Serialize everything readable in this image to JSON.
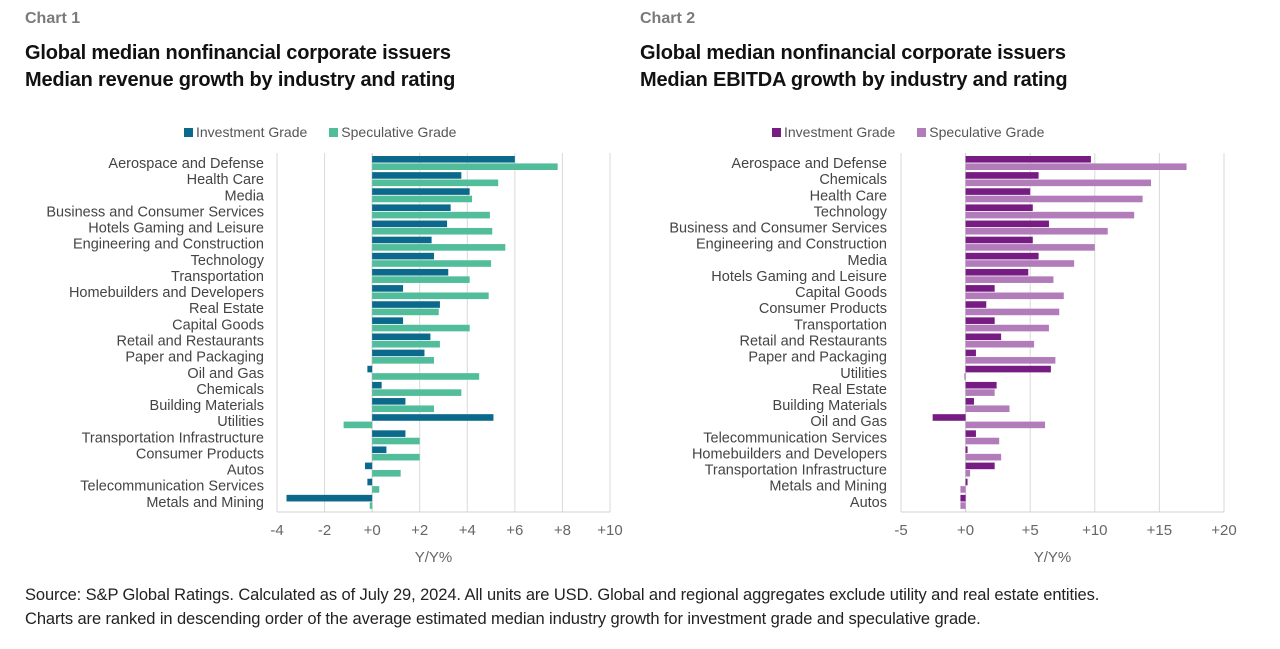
{
  "footer": {
    "line1": "Source: S&P Global Ratings. Calculated as of July 29, 2024. All units are USD. Global and regional aggregates exclude utility and real estate entities.",
    "line2": "Charts are ranked in descending order of the average estimated median industry growth for investment grade and speculative grade."
  },
  "chart_data": [
    {
      "type": "bar",
      "orientation": "horizontal",
      "chart_number": "Chart 1",
      "title_line1": "Global median nonfinancial corporate issuers",
      "title_line2": "Median revenue growth by industry and rating",
      "xlabel": "Y/Y%",
      "ylabel": "",
      "xlim": [
        -4,
        10
      ],
      "xticks": [
        -4,
        -2,
        0,
        2,
        4,
        6,
        8,
        10
      ],
      "xtick_labels": [
        "-4",
        "-2",
        "+0",
        "+2",
        "+4",
        "+6",
        "+8",
        "+10"
      ],
      "grid": true,
      "legend_position": "top",
      "categories": [
        "Aerospace and Defense",
        "Health Care",
        "Media",
        "Business and Consumer Services",
        "Hotels Gaming and Leisure",
        "Engineering and Construction",
        "Technology",
        "Transportation",
        "Homebuilders and Developers",
        "Real Estate",
        "Capital Goods",
        "Retail and Restaurants",
        "Paper and Packaging",
        "Oil and Gas",
        "Chemicals",
        "Building Materials",
        "Utilities",
        "Transportation Infrastructure",
        "Consumer Products",
        "Autos",
        "Telecommunication Services",
        "Metals and Mining"
      ],
      "series": [
        {
          "name": "Investment Grade",
          "color": "#0b6a8b",
          "values": [
            6.0,
            3.75,
            4.1,
            3.3,
            3.15,
            2.5,
            2.6,
            3.2,
            1.3,
            2.85,
            1.3,
            2.45,
            2.2,
            -0.2,
            0.4,
            1.4,
            5.1,
            1.4,
            0.6,
            -0.3,
            -0.2,
            -3.6
          ]
        },
        {
          "name": "Speculative Grade",
          "color": "#52bd9a",
          "values": [
            7.8,
            5.3,
            4.2,
            4.95,
            5.05,
            5.6,
            5.0,
            4.1,
            4.9,
            2.8,
            4.1,
            2.85,
            2.6,
            4.5,
            3.75,
            2.6,
            -1.2,
            2.0,
            2.0,
            1.2,
            0.3,
            -0.1
          ]
        }
      ]
    },
    {
      "type": "bar",
      "orientation": "horizontal",
      "chart_number": "Chart 2",
      "title_line1": "Global median nonfinancial corporate issuers",
      "title_line2": "Median EBITDA growth by industry and rating",
      "xlabel": "Y/Y%",
      "ylabel": "",
      "xlim": [
        -5,
        20
      ],
      "xticks": [
        -5,
        0,
        5,
        10,
        15,
        20
      ],
      "xtick_labels": [
        "-5",
        "+0",
        "+5",
        "+10",
        "+15",
        "+20"
      ],
      "grid": true,
      "legend_position": "top",
      "categories": [
        "Aerospace and Defense",
        "Chemicals",
        "Health Care",
        "Technology",
        "Business and Consumer Services",
        "Engineering and Construction",
        "Media",
        "Hotels Gaming and Leisure",
        "Capital Goods",
        "Consumer Products",
        "Transportation",
        "Retail and Restaurants",
        "Paper and Packaging",
        "Utilities",
        "Real Estate",
        "Building Materials",
        "Oil and Gas",
        "Telecommunication Services",
        "Homebuilders and Developers",
        "Transportation Infrastructure",
        "Metals and Mining",
        "Autos"
      ],
      "series": [
        {
          "name": "Investment Grade",
          "color": "#761c82",
          "values": [
            9.7,
            5.65,
            5.0,
            5.2,
            6.45,
            5.2,
            5.65,
            4.85,
            2.25,
            1.6,
            2.25,
            2.75,
            0.8,
            6.6,
            2.4,
            0.65,
            -2.55,
            0.8,
            0.15,
            2.25,
            0.15,
            -0.4
          ]
        },
        {
          "name": "Speculative Grade",
          "color": "#b27cbb",
          "values": [
            17.1,
            14.35,
            13.7,
            13.05,
            11.0,
            10.0,
            8.4,
            6.8,
            7.6,
            7.25,
            6.45,
            5.3,
            6.95,
            -0.1,
            2.25,
            3.4,
            6.15,
            2.6,
            2.75,
            0.35,
            -0.4,
            -0.4
          ]
        }
      ]
    }
  ]
}
